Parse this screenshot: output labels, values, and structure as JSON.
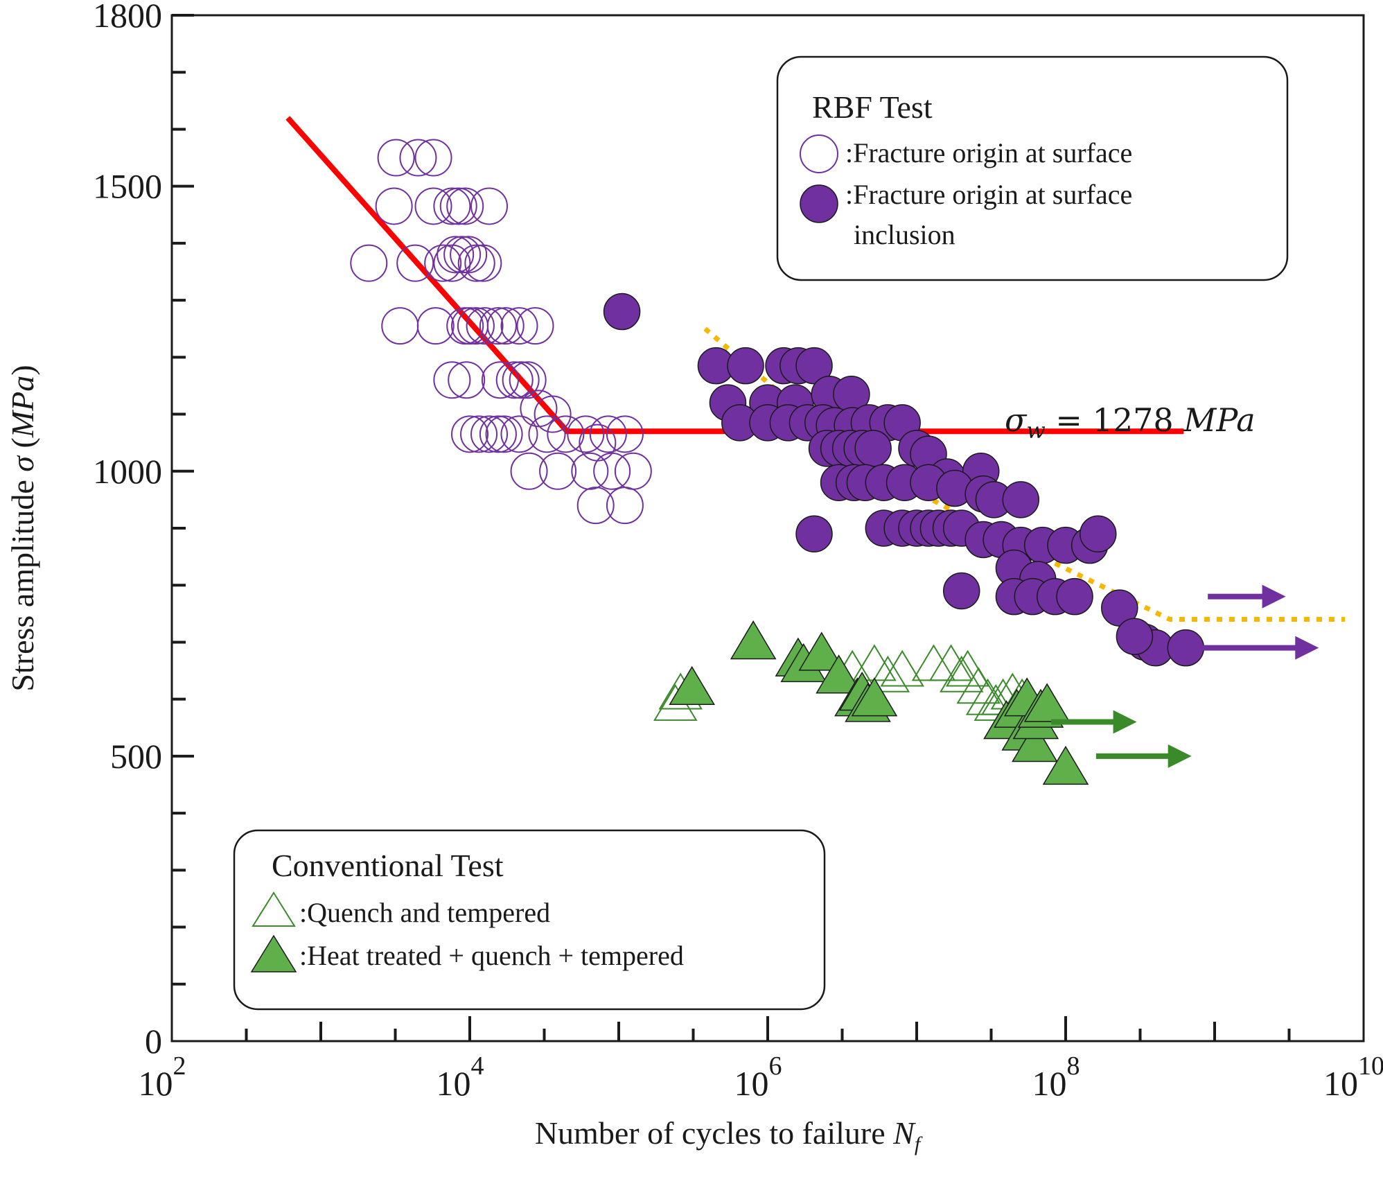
{
  "chart_data": {
    "type": "scatter",
    "title": "",
    "xlabel": "Number of cycles to failure",
    "xlabel_var": "N",
    "xlabel_sub": "f",
    "ylabel": "Stress amplitude σ (MPa)",
    "xscale": "log",
    "xlim": [
      100,
      10000000000
    ],
    "ylim": [
      0,
      1800
    ],
    "x_ticks": [
      {
        "base": "10",
        "exp": "2",
        "value": 100
      },
      {
        "base": "10",
        "exp": "4",
        "value": 10000
      },
      {
        "base": "10",
        "exp": "6",
        "value": 1000000
      },
      {
        "base": "10",
        "exp": "8",
        "value": 100000000
      },
      {
        "base": "10",
        "exp": "10",
        "value": 10000000000
      }
    ],
    "y_ticks": [
      {
        "label": "0",
        "value": 0
      },
      {
        "label": "500",
        "value": 500
      },
      {
        "label": "1000",
        "value": 1000
      },
      {
        "label": "1500",
        "value": 1500
      },
      {
        "label": "1800",
        "value": 1800
      }
    ],
    "annotation": {
      "label": "σw = 1278 MPa",
      "sigma": "σ",
      "sub": "w",
      "rest": " = 1278 ",
      "unit": "MPa"
    },
    "legends": [
      {
        "title": "RBF Test",
        "entries": [
          {
            "label": ":Fracture  origin  at surface",
            "marker": "open-circle",
            "color": "#7030a0"
          },
          {
            "label": ":Fracture  origin  at surface",
            "label2": "inclusion",
            "marker": "filled-circle",
            "color": "#7030a0"
          }
        ]
      },
      {
        "title": "Conventional  Test",
        "entries": [
          {
            "label": ":Quench  and tempered",
            "marker": "open-triangle",
            "color": "#3a8a2a"
          },
          {
            "label": ":Heat  treated  + quench  + tempered",
            "marker": "filled-triangle",
            "color": "#3a8a2a"
          }
        ]
      }
    ],
    "colors": {
      "open_circle": "#7030a0",
      "filled_circle": "#7030a0",
      "triangle": "#3a8a2a",
      "triangle_fill": "#5fb04a",
      "fit_line": "#ff0000",
      "dotted_line": "#f5b700"
    },
    "series": [
      {
        "marker": "open-circle",
        "points": [
          [
            3200,
            1550
          ],
          [
            4500,
            1550
          ],
          [
            5700,
            1550
          ],
          [
            3100,
            1465
          ],
          [
            5700,
            1465
          ],
          [
            7600,
            1465
          ],
          [
            8400,
            1465
          ],
          [
            9300,
            1465
          ],
          [
            13500,
            1465
          ],
          [
            2100,
            1365
          ],
          [
            4300,
            1365
          ],
          [
            6600,
            1365
          ],
          [
            7600,
            1365
          ],
          [
            8000,
            1380
          ],
          [
            8900,
            1380
          ],
          [
            9800,
            1380
          ],
          [
            11100,
            1365
          ],
          [
            12300,
            1365
          ],
          [
            3400,
            1255
          ],
          [
            5900,
            1255
          ],
          [
            9300,
            1255
          ],
          [
            10000,
            1255
          ],
          [
            11000,
            1255
          ],
          [
            12600,
            1255
          ],
          [
            15500,
            1255
          ],
          [
            17400,
            1255
          ],
          [
            21500,
            1255
          ],
          [
            27500,
            1255
          ],
          [
            7600,
            1160
          ],
          [
            9500,
            1160
          ],
          [
            16000,
            1160
          ],
          [
            20000,
            1160
          ],
          [
            22000,
            1160
          ],
          [
            24500,
            1160
          ],
          [
            29000,
            1110
          ],
          [
            10000,
            1065
          ],
          [
            11500,
            1065
          ],
          [
            13500,
            1065
          ],
          [
            15500,
            1065
          ],
          [
            17000,
            1065
          ],
          [
            21500,
            1065
          ],
          [
            33000,
            1065
          ],
          [
            36000,
            1100
          ],
          [
            44000,
            1065
          ],
          [
            60000,
            1065
          ],
          [
            72000,
            1050
          ],
          [
            85000,
            1065
          ],
          [
            110000,
            1065
          ],
          [
            25000,
            1000
          ],
          [
            39000,
            1000
          ],
          [
            64000,
            1000
          ],
          [
            90000,
            1000
          ],
          [
            125000,
            1000
          ],
          [
            70000,
            940
          ],
          [
            110000,
            940
          ]
        ]
      },
      {
        "marker": "filled-circle",
        "points": [
          [
            105000,
            1280
          ],
          [
            450000,
            1185
          ],
          [
            710000,
            1185
          ],
          [
            1280000,
            1185
          ],
          [
            1600000,
            1185
          ],
          [
            2050000,
            1185
          ],
          [
            540000,
            1120
          ],
          [
            1000000,
            1120
          ],
          [
            1530000,
            1120
          ],
          [
            2600000,
            1135
          ],
          [
            3650000,
            1135
          ],
          [
            650000,
            1085
          ],
          [
            1000000,
            1085
          ],
          [
            1370000,
            1085
          ],
          [
            1850000,
            1085
          ],
          [
            2350000,
            1085
          ],
          [
            2800000,
            1080
          ],
          [
            3700000,
            1080
          ],
          [
            4800000,
            1085
          ],
          [
            6400000,
            1085
          ],
          [
            8000000,
            1085
          ],
          [
            2500000,
            1040
          ],
          [
            3000000,
            1040
          ],
          [
            3600000,
            1040
          ],
          [
            4300000,
            1040
          ],
          [
            5100000,
            1040
          ],
          [
            10000000,
            1040
          ],
          [
            12000000,
            1030
          ],
          [
            16000000,
            990
          ],
          [
            27000000,
            1000
          ],
          [
            3000000,
            980
          ],
          [
            3800000,
            980
          ],
          [
            4500000,
            980
          ],
          [
            6000000,
            980
          ],
          [
            8300000,
            980
          ],
          [
            12000000,
            980
          ],
          [
            18000000,
            970
          ],
          [
            28000000,
            960
          ],
          [
            33000000,
            950
          ],
          [
            50000000,
            950
          ],
          [
            2050000,
            890
          ],
          [
            6000000,
            900
          ],
          [
            8000000,
            900
          ],
          [
            10000000,
            900
          ],
          [
            12000000,
            900
          ],
          [
            14000000,
            900
          ],
          [
            17000000,
            900
          ],
          [
            20000000,
            900
          ],
          [
            28000000,
            880
          ],
          [
            37000000,
            880
          ],
          [
            50000000,
            870
          ],
          [
            70000000,
            870
          ],
          [
            100000000,
            870
          ],
          [
            145000000,
            870
          ],
          [
            165000000,
            890
          ],
          [
            45000000,
            830
          ],
          [
            65000000,
            810
          ],
          [
            20000000,
            790
          ],
          [
            45000000,
            780
          ],
          [
            60000000,
            780
          ],
          [
            85000000,
            780
          ],
          [
            115000000,
            780
          ],
          [
            230000000,
            760
          ],
          [
            340000000,
            700
          ],
          [
            400000000,
            690
          ],
          [
            640000000,
            690
          ],
          [
            290000000,
            710
          ]
        ]
      },
      {
        "marker": "open-triangle",
        "points": [
          [
            240000,
            590
          ],
          [
            260000,
            610
          ],
          [
            3700000,
            650
          ],
          [
            5200000,
            660
          ],
          [
            6400000,
            640
          ],
          [
            8000000,
            650
          ],
          [
            13000000,
            660
          ],
          [
            17000000,
            660
          ],
          [
            20000000,
            640
          ],
          [
            22000000,
            650
          ],
          [
            26000000,
            620
          ],
          [
            30000000,
            600
          ],
          [
            34000000,
            590
          ],
          [
            38000000,
            600
          ],
          [
            44000000,
            610
          ],
          [
            51000000,
            600
          ]
        ]
      },
      {
        "marker": "filled-triangle",
        "points": [
          [
            310000,
            620
          ],
          [
            800000,
            700
          ],
          [
            1600000,
            670
          ],
          [
            1740000,
            660
          ],
          [
            2300000,
            680
          ],
          [
            3000000,
            640
          ],
          [
            4000000,
            600
          ],
          [
            4300000,
            610
          ],
          [
            4700000,
            590
          ],
          [
            5200000,
            600
          ],
          [
            40000000,
            560
          ],
          [
            47000000,
            580
          ],
          [
            53000000,
            540
          ],
          [
            55000000,
            600
          ],
          [
            62000000,
            520
          ],
          [
            63000000,
            560
          ],
          [
            68000000,
            580
          ],
          [
            75000000,
            590
          ],
          [
            100000000,
            480
          ]
        ]
      }
    ],
    "arrows": [
      {
        "color": "#7030a0",
        "x_from": 900000000,
        "x_to": 3000000000,
        "y": 780
      },
      {
        "color": "#7030a0",
        "x_from": 800000000,
        "x_to": 5000000000,
        "y": 690
      },
      {
        "color": "#3a8a2a",
        "x_from": 80000000,
        "x_to": 300000000,
        "y": 560
      },
      {
        "color": "#3a8a2a",
        "x_from": 160000000,
        "x_to": 700000000,
        "y": 500
      }
    ],
    "fit_line": [
      [
        600,
        1620
      ],
      [
        45000,
        1070
      ],
      [
        620000000,
        1070
      ]
    ],
    "dotted_line": [
      [
        380000,
        1250
      ],
      [
        4000000,
        1020
      ],
      [
        40000000,
        880
      ],
      [
        500000000,
        740
      ],
      [
        7500000000,
        740
      ]
    ]
  }
}
